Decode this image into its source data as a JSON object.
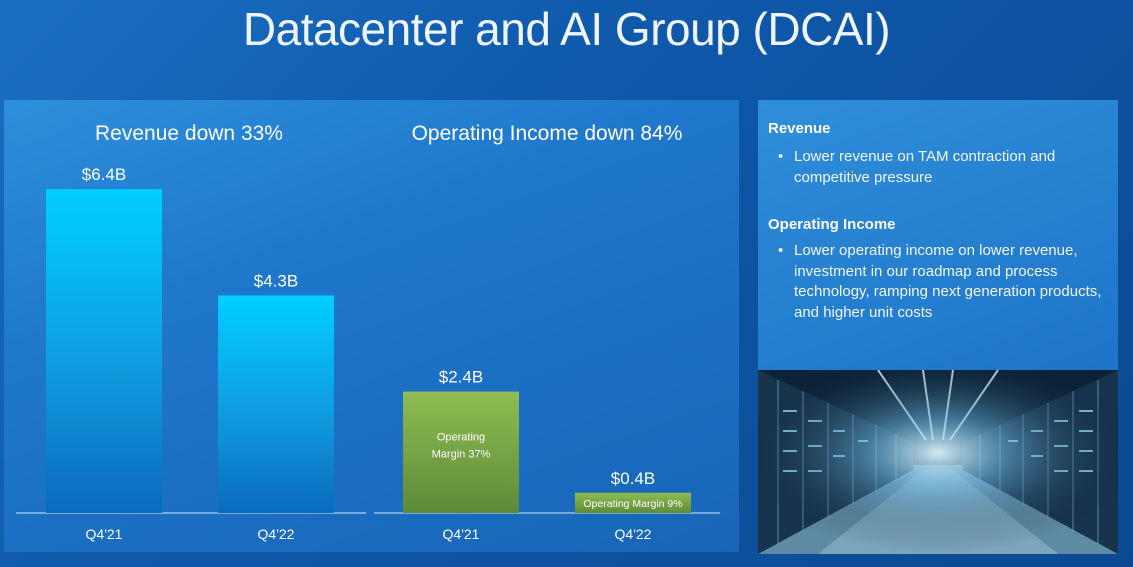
{
  "slide": {
    "title": "Datacenter and AI Group (DCAI)"
  },
  "chart_data": [
    {
      "type": "bar",
      "title": "Revenue down 33%",
      "categories": [
        "Q4'21",
        "Q4'22"
      ],
      "values": [
        6.4,
        4.3
      ],
      "data_labels": [
        "$6.4B",
        "$4.3B"
      ],
      "unit": "$B",
      "colors": [
        "#00c8ff",
        "#0a6ec4"
      ]
    },
    {
      "type": "bar",
      "title": "Operating Income down 84%",
      "categories": [
        "Q4'21",
        "Q4'22"
      ],
      "values": [
        2.4,
        0.4
      ],
      "data_labels": [
        "$2.4B",
        "$0.4B"
      ],
      "bar_annotations": [
        "Operating Margin 37%",
        "Operating Margin 9%"
      ],
      "unit": "$B",
      "colors": [
        "#8cb84f",
        "#5f8b3a"
      ]
    }
  ],
  "commentary": {
    "revenue_heading": "Revenue",
    "revenue_bullets": [
      "Lower revenue on TAM contraction and competitive pressure"
    ],
    "income_heading": "Operating Income",
    "income_bullets": [
      "Lower operating income on lower revenue, investment in our roadmap and process technology, ramping next generation products, and higher unit costs"
    ]
  },
  "image": {
    "icon": "datacenter-server-aisle-photo"
  }
}
